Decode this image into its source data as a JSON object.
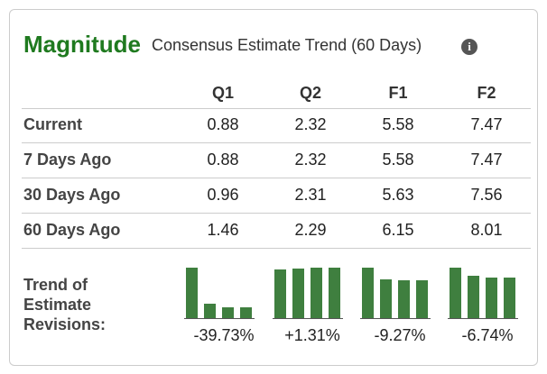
{
  "header": {
    "title": "Magnitude",
    "subtitle": "Consensus Estimate Trend (60 Days)"
  },
  "table": {
    "columns": [
      "Q1",
      "Q2",
      "F1",
      "F2"
    ],
    "rows": [
      {
        "label": "Current",
        "values": [
          0.88,
          2.32,
          5.58,
          7.47
        ]
      },
      {
        "label": "7 Days Ago",
        "values": [
          0.88,
          2.32,
          5.58,
          7.47
        ]
      },
      {
        "label": "30 Days Ago",
        "values": [
          0.96,
          2.31,
          5.63,
          7.56
        ]
      },
      {
        "label": "60 Days Ago",
        "values": [
          1.46,
          2.29,
          6.15,
          8.01
        ]
      }
    ]
  },
  "trend": {
    "label": "Trend of Estimate Revisions:",
    "changes": [
      "-39.73%",
      "+1.31%",
      "-9.27%",
      "-6.74%"
    ]
  }
}
